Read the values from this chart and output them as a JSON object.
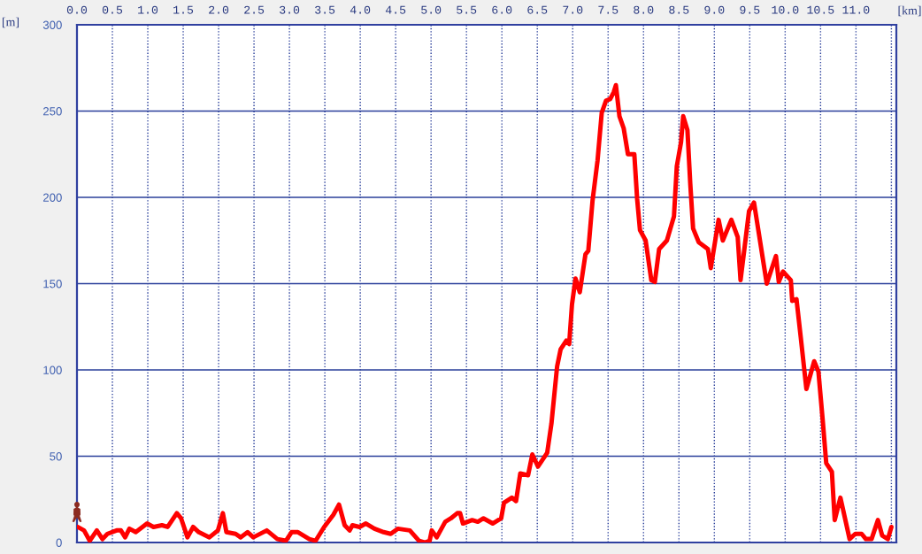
{
  "chart_data": {
    "type": "line",
    "xlabel": "[km]",
    "ylabel": "[m]",
    "color": "#ff0000",
    "x": [
      0.01,
      0.1,
      0.18,
      0.28,
      0.36,
      0.43,
      0.56,
      0.62,
      0.68,
      0.74,
      0.83,
      0.99,
      1.08,
      1.2,
      1.28,
      1.41,
      1.47,
      1.56,
      1.64,
      1.72,
      1.87,
      1.99,
      2.06,
      2.11,
      2.24,
      2.31,
      2.41,
      2.49,
      2.68,
      2.83,
      2.95,
      3.03,
      3.12,
      3.28,
      3.37,
      3.49,
      3.62,
      3.7,
      3.78,
      3.85,
      3.89,
      3.99,
      4.08,
      4.2,
      4.33,
      4.43,
      4.53,
      4.7,
      4.83,
      4.91,
      4.98,
      5.01,
      5.08,
      5.2,
      5.28,
      5.37,
      5.41,
      5.45,
      5.58,
      5.66,
      5.74,
      5.87,
      5.99,
      6.03,
      6.14,
      6.2,
      6.26,
      6.37,
      6.43,
      6.51,
      6.64,
      6.7,
      6.78,
      6.83,
      6.91,
      6.95,
      6.99,
      7.04,
      7.1,
      7.18,
      7.22,
      7.28,
      7.35,
      7.41,
      7.47,
      7.53,
      7.58,
      7.61,
      7.66,
      7.72,
      7.78,
      7.87,
      7.91,
      7.95,
      8.03,
      8.11,
      8.16,
      8.22,
      8.33,
      8.43,
      8.47,
      8.53,
      8.56,
      8.62,
      8.66,
      8.7,
      8.78,
      8.91,
      8.95,
      9.06,
      9.12,
      9.24,
      9.33,
      9.37,
      9.43,
      9.49,
      9.56,
      9.74,
      9.87,
      9.91,
      9.97,
      10.08,
      10.1,
      10.16,
      10.22,
      10.3,
      10.41,
      10.47,
      10.53,
      10.58,
      10.66,
      10.7,
      10.78,
      10.91,
      10.99,
      11.08,
      11.14,
      11.22,
      11.31,
      11.37,
      11.45,
      11.5
    ],
    "values": [
      9,
      7,
      1,
      7,
      2,
      5,
      7,
      7,
      3,
      8,
      6,
      11,
      9,
      10,
      9,
      17,
      14,
      3,
      9,
      6,
      3,
      7,
      17,
      6,
      5,
      3,
      6,
      3,
      7,
      2,
      1,
      6,
      6,
      2,
      1,
      9,
      16,
      22,
      10,
      7,
      10,
      9,
      11,
      8,
      6,
      5,
      8,
      7,
      1,
      0,
      1,
      7,
      3,
      12,
      14,
      17,
      17,
      11,
      13,
      12,
      14,
      11,
      14,
      23,
      26,
      24,
      40,
      39,
      51,
      44,
      52,
      69,
      102,
      112,
      117,
      115,
      138,
      153,
      145,
      167,
      169,
      198,
      221,
      249,
      256,
      257,
      261,
      265,
      247,
      240,
      225,
      225,
      199,
      181,
      175,
      152,
      151,
      170,
      175,
      189,
      218,
      232,
      247,
      239,
      208,
      182,
      174,
      170,
      159,
      187,
      175,
      187,
      177,
      152,
      172,
      192,
      197,
      150,
      166,
      151,
      157,
      152,
      140,
      141,
      119,
      89,
      105,
      99,
      71,
      46,
      41,
      13,
      26,
      2,
      5,
      5,
      2,
      2,
      13,
      4,
      2,
      9
    ],
    "xlim": [
      0,
      11.57
    ],
    "ylim": [
      0,
      300
    ],
    "xticks": [
      {
        "value": 0,
        "label": "0.0"
      },
      0.5,
      {
        "value": 1,
        "label": "1.0"
      },
      1.5,
      {
        "value": 2,
        "label": "2.0"
      },
      2.5,
      {
        "value": 3,
        "label": "3.0"
      },
      3.5,
      {
        "value": 4,
        "label": "4.0"
      },
      4.5,
      {
        "value": 5,
        "label": "5.0"
      },
      5.5,
      {
        "value": 6,
        "label": "6.0"
      },
      6.5,
      {
        "value": 7,
        "label": "7.0"
      },
      7.5,
      {
        "value": 8,
        "label": "8.0"
      },
      8.5,
      {
        "value": 9,
        "label": "9.0"
      },
      9.5,
      {
        "value": 10,
        "label": "10.0"
      },
      10.5,
      {
        "value": 11,
        "label": "11.0"
      },
      {
        "value": 11.5,
        "label": null
      }
    ],
    "yticks": [
      0,
      50,
      100,
      150,
      200,
      250,
      300
    ],
    "grid": true,
    "line_style": "solid"
  }
}
